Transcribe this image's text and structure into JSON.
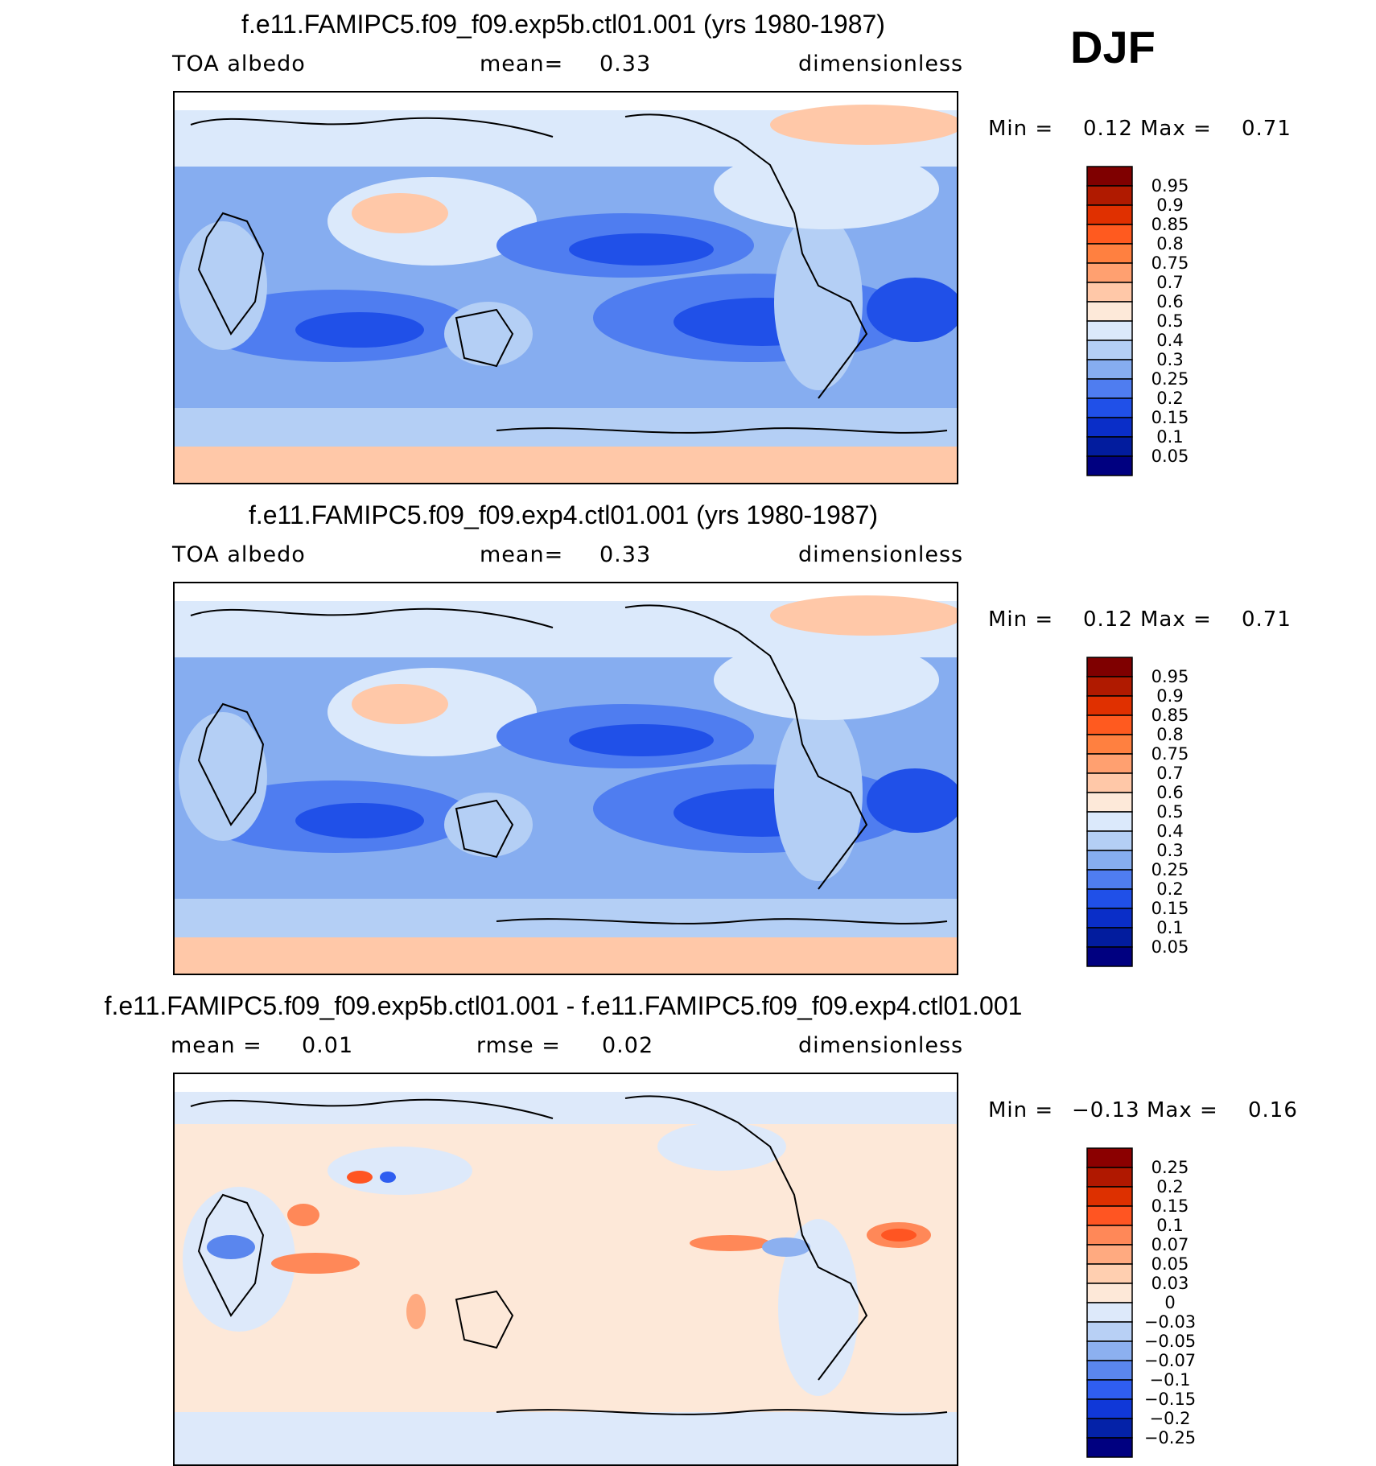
{
  "season": "DJF",
  "panels": [
    {
      "title": "f.e11.FAMIPC5.f09_f09.exp5b.ctl01.001 (yrs 1980-1987)",
      "variable": "TOA  albedo",
      "stat1": "mean=",
      "stat1_value": "0.33",
      "units": "dimensionless",
      "min_label": "Min  =",
      "min_value": "0.12",
      "max_label": "Max  =",
      "max_value": "0.71",
      "colorbar": [
        "0.95",
        "0.9",
        "0.85",
        "0.8",
        "0.75",
        "0.7",
        "0.6",
        "0.5",
        "0.4",
        "0.3",
        "0.25",
        "0.2",
        "0.15",
        "0.1",
        "0.05"
      ]
    },
    {
      "title": "f.e11.FAMIPC5.f09_f09.exp4.ctl01.001 (yrs 1980-1987)",
      "variable": "TOA  albedo",
      "stat1": "mean=",
      "stat1_value": "0.33",
      "units": "dimensionless",
      "min_label": "Min  =",
      "min_value": "0.12",
      "max_label": "Max  =",
      "max_value": "0.71",
      "colorbar": [
        "0.95",
        "0.9",
        "0.85",
        "0.8",
        "0.75",
        "0.7",
        "0.6",
        "0.5",
        "0.4",
        "0.3",
        "0.25",
        "0.2",
        "0.15",
        "0.1",
        "0.05"
      ]
    },
    {
      "title": "f.e11.FAMIPC5.f09_f09.exp5b.ctl01.001 - f.e11.FAMIPC5.f09_f09.exp4.ctl01.001",
      "stat1": "mean  =",
      "stat1_value": "0.01",
      "stat2": "rmse  =",
      "stat2_value": "0.02",
      "units": "dimensionless",
      "min_label": "Min  =",
      "min_value": "−0.13",
      "max_label": "Max  =",
      "max_value": "0.16",
      "colorbar": [
        "0.25",
        "0.2",
        "0.15",
        "0.1",
        "0.07",
        "0.05",
        "0.03",
        "0",
        "−0.03",
        "−0.05",
        "−0.07",
        "−0.1",
        "−0.15",
        "−0.2",
        "−0.25"
      ]
    }
  ],
  "colors": {
    "abs_scale": [
      "#7f0000",
      "#b01a00",
      "#e03000",
      "#ff5a1f",
      "#ff8040",
      "#ffa070",
      "#ffc8a8",
      "#fde9d9",
      "#dbe9fb",
      "#b4cff5",
      "#86adf0",
      "#4f7df0",
      "#2050e8",
      "#0a2ec8",
      "#021c9e",
      "#000080"
    ],
    "diff_scale": [
      "#8b0000",
      "#b01800",
      "#dd3000",
      "#ff5522",
      "#ff8858",
      "#ffaa80",
      "#ffcfb0",
      "#fde8d8",
      "#dde9fa",
      "#b8d0f5",
      "#8cb0f0",
      "#5a86ee",
      "#2f5ef0",
      "#1038d8",
      "#0422a8",
      "#000080"
    ]
  },
  "chart_data": [
    {
      "type": "heatmap",
      "title": "f.e11.FAMIPC5.f09_f09.exp5b.ctl01.001 (yrs 1980-1987)",
      "subtitle": "TOA  albedo  mean= 0.33  dimensionless",
      "levels": [
        0.05,
        0.1,
        0.15,
        0.2,
        0.25,
        0.3,
        0.4,
        0.5,
        0.6,
        0.7,
        0.75,
        0.8,
        0.85,
        0.9,
        0.95
      ],
      "min": 0.12,
      "max": 0.71,
      "mean": 0.33
    },
    {
      "type": "heatmap",
      "title": "f.e11.FAMIPC5.f09_f09.exp4.ctl01.001 (yrs 1980-1987)",
      "subtitle": "TOA  albedo  mean= 0.33  dimensionless",
      "levels": [
        0.05,
        0.1,
        0.15,
        0.2,
        0.25,
        0.3,
        0.4,
        0.5,
        0.6,
        0.7,
        0.75,
        0.8,
        0.85,
        0.9,
        0.95
      ],
      "min": 0.12,
      "max": 0.71,
      "mean": 0.33
    },
    {
      "type": "heatmap",
      "title": "f.e11.FAMIPC5.f09_f09.exp5b.ctl01.001 - f.e11.FAMIPC5.f09_f09.exp4.ctl01.001",
      "subtitle": "mean = 0.01  rmse = 0.02  dimensionless",
      "levels": [
        -0.25,
        -0.2,
        -0.15,
        -0.1,
        -0.07,
        -0.05,
        -0.03,
        0,
        0.03,
        0.05,
        0.07,
        0.1,
        0.15,
        0.2,
        0.25
      ],
      "min": -0.13,
      "max": 0.16,
      "mean": 0.01,
      "rmse": 0.02
    }
  ]
}
